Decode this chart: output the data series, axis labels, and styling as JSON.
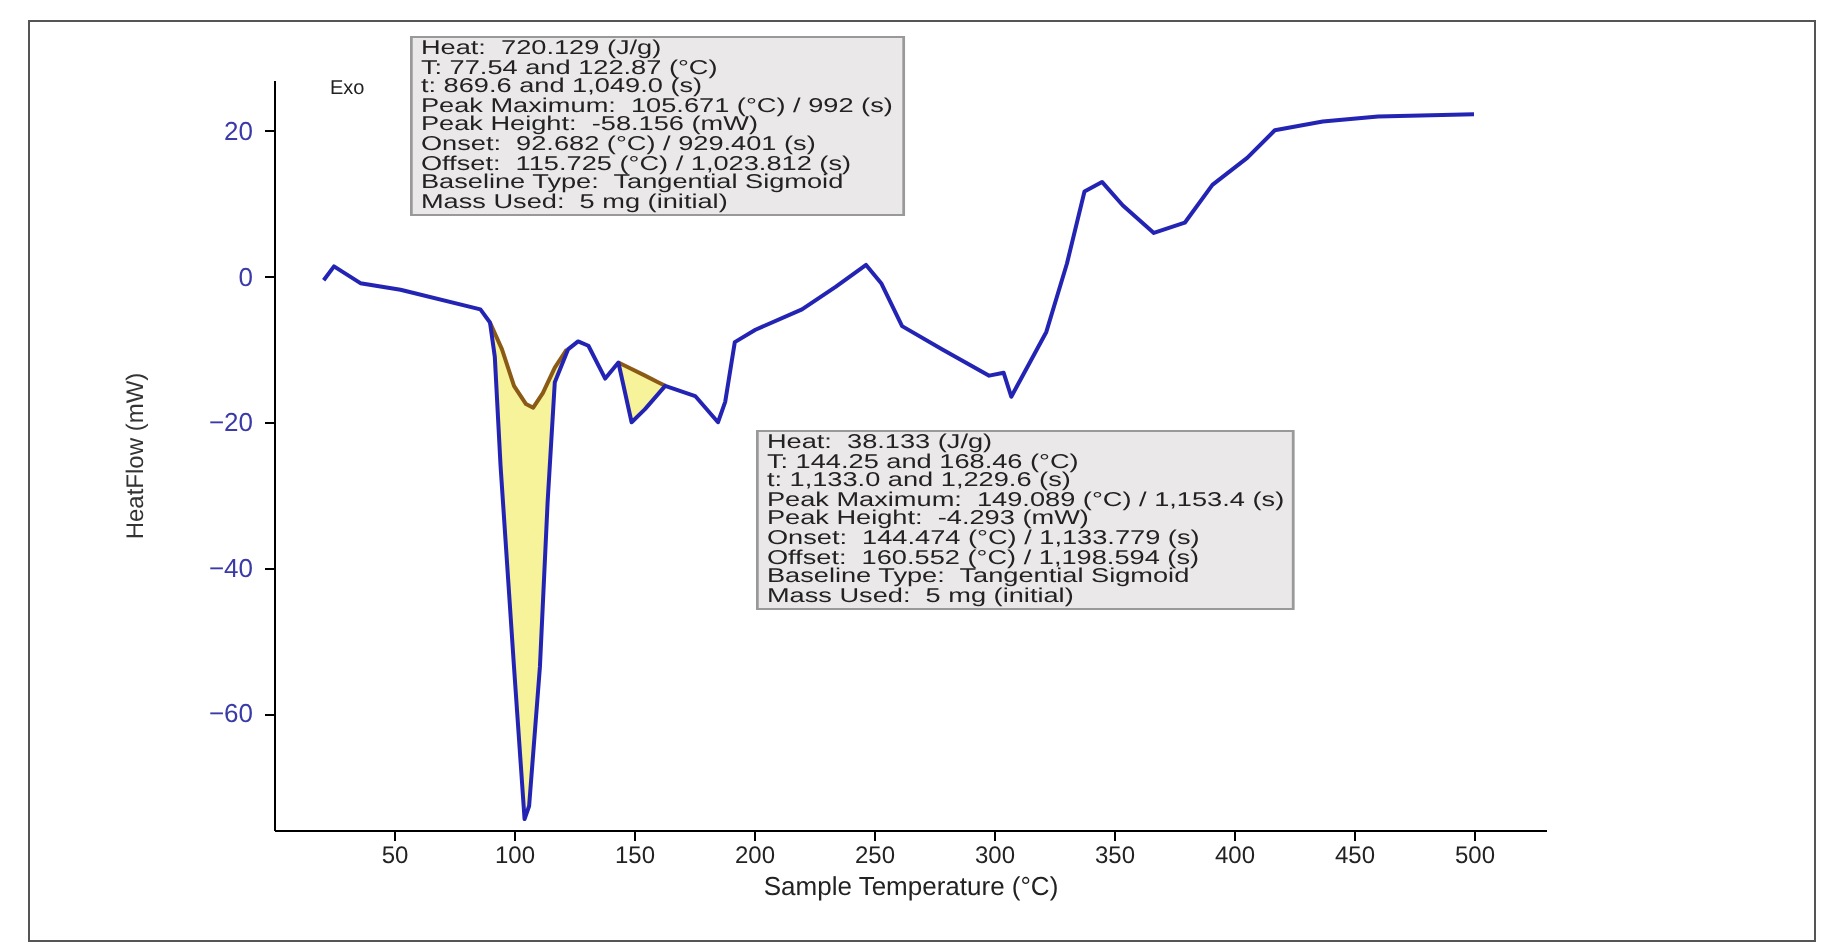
{
  "chart_data": {
    "type": "line",
    "xlabel": "Sample Temperature (°C)",
    "ylabel": "HeatFlow (mW)",
    "xlim": [
      0,
      530
    ],
    "ylim": [
      -76,
      27
    ],
    "xticks": [
      50,
      100,
      150,
      200,
      250,
      300,
      350,
      400,
      450,
      500
    ],
    "yticks": [
      -60,
      -40,
      -20,
      0,
      20
    ],
    "series": [
      {
        "color": "#8b5a14",
        "x": [
          90,
          95,
          100,
          105,
          108,
          112,
          117,
          122
        ],
        "values": [
          -6.3,
          -10,
          -15,
          -17.5,
          -18,
          -16,
          -12.5,
          -10
        ],
        "lower": [
          -6.3,
          -28,
          -53.6,
          -74,
          -68,
          -45,
          -14.5,
          -10
        ],
        "upper": [
          -6.3,
          -10,
          -15,
          -17.5,
          -18,
          -16,
          -12.5,
          -10
        ]
      },
      {
        "color": "#8b5a14",
        "x": [
          143.5,
          149,
          154.6,
          160,
          163
        ],
        "values": [
          -11.8,
          -12.7,
          -13.6,
          -14.5,
          -15
        ],
        "lower": [
          -11.8,
          -20,
          -18.2,
          -16,
          -15
        ],
        "upper": [
          -11.8,
          -12.7,
          -13.6,
          -14.5,
          -15
        ]
      },
      {
        "color": "#2424b4",
        "x": [
          20.7,
          25,
          36,
          52.7,
          86,
          90,
          92,
          94.4,
          100,
          104.4,
          106.3,
          110.8,
          114,
          117,
          122.5,
          126.7,
          131,
          138,
          143.5,
          149,
          154.6,
          163,
          175.5,
          185,
          188,
          192,
          200.6,
          220,
          234,
          246.7,
          253,
          261.7,
          278.5,
          298,
          304,
          307.2,
          321.8,
          330.4,
          337.7,
          345,
          353.6,
          366.6,
          379.5,
          391,
          405.5,
          417,
          437,
          460,
          500
        ],
        "values": [
          -0.5,
          1.4,
          -0.9,
          -1.8,
          -4.5,
          -6.3,
          -11,
          -26,
          -53.6,
          -74.5,
          -72.7,
          -53.6,
          -31,
          -14.5,
          -10,
          -8.9,
          -9.5,
          -14,
          -11.8,
          -20,
          -18.2,
          -15,
          -16.4,
          -20,
          -17.2,
          -9,
          -7.3,
          -4.5,
          -1.4,
          1.6,
          -0.9,
          -6.8,
          -10,
          -13.6,
          -13.2,
          -16.5,
          -7.6,
          1.8,
          11.7,
          13,
          9.8,
          6,
          7.4,
          12.6,
          16.3,
          20.1,
          21.3,
          22,
          22.3
        ]
      }
    ],
    "annotations": [
      "Exo",
      "Heat:  720.129 (J/g)\nT: 77.54 and 122.87 (°C)\nt: 869.6 and 1,049.0 (s)\nPeak Maximum:  105.671 (°C) / 992 (s)\nPeak Height:  -58.156 (mW)\nOnset:  92.682 (°C) / 929.401 (s)\nOffset:  115.725 (°C) / 1,023.812 (s)\nBaseline Type:  Tangential Sigmoid\nMass Used:  5 mg (initial)",
      "Heat:  38.133 (J/g)\nT: 144.25 and 168.46 (°C)\nt: 1,133.0 and 1,229.6 (s)\nPeak Maximum:  149.089 (°C) / 1,153.4 (s)\nPeak Height:  -4.293 (mW)\nOnset:  144.474 (°C) / 1,133.779 (s)\nOffset:  160.552 (°C) / 1,198.594 (s)\nBaseline Type:  Tangential Sigmoid\nMass Used:  5 mg (initial)"
    ]
  }
}
